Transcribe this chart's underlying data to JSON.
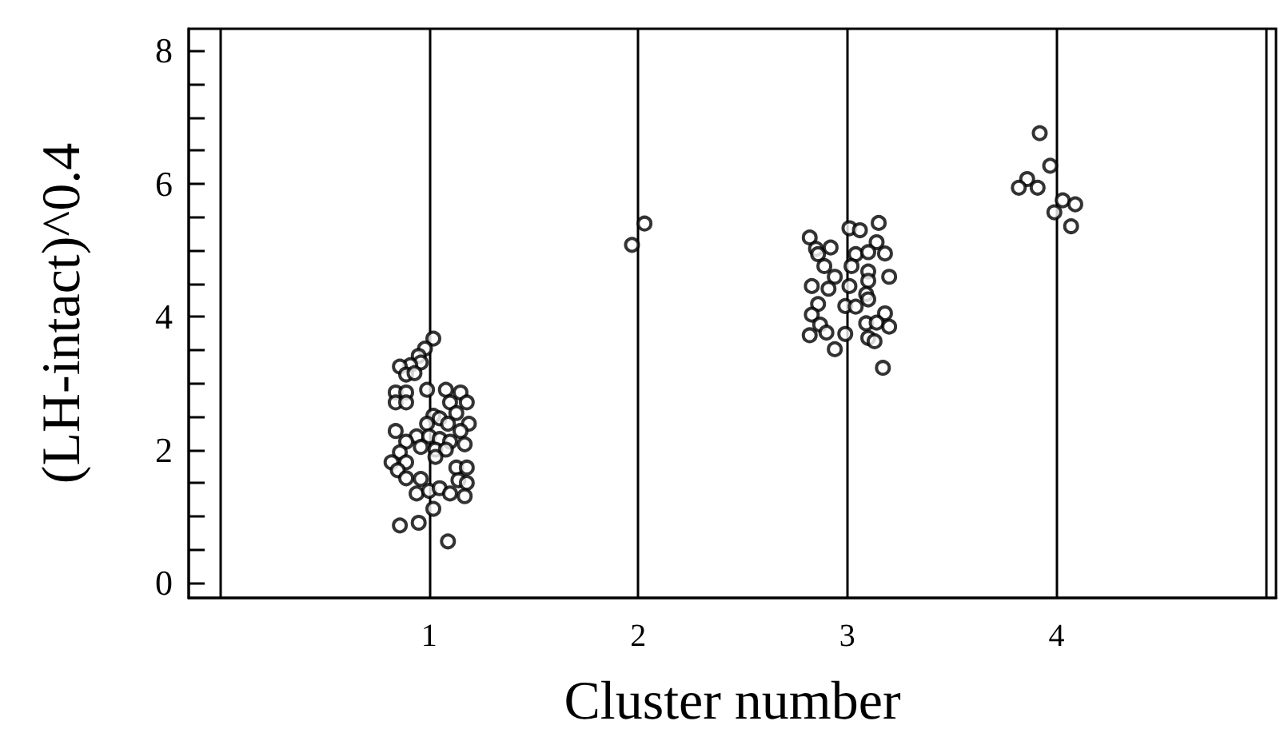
{
  "chart_data": {
    "type": "scatter",
    "xlabel": "Cluster number",
    "ylabel": "(LH-intact)^0.4",
    "xlim": [
      -0.15,
      5.05
    ],
    "xticks": [
      {
        "value": 0,
        "label": null
      },
      1,
      2,
      3,
      4,
      {
        "value": 5,
        "label": null
      }
    ],
    "ylim": [
      -0.23,
      8.33
    ],
    "yticks": [
      0,
      {
        "value": 0.5,
        "label": null
      },
      {
        "value": 1,
        "label": null
      },
      {
        "value": 1.5,
        "label": null
      },
      2,
      {
        "value": 2.5,
        "label": null
      },
      {
        "value": 3,
        "label": null
      },
      {
        "value": 3.5,
        "label": null
      },
      4,
      {
        "value": 4.5,
        "label": null
      },
      {
        "value": 5,
        "label": null
      },
      {
        "value": 5.5,
        "label": null
      },
      6,
      {
        "value": 6.5,
        "label": null
      },
      {
        "value": 7,
        "label": null
      },
      {
        "value": 7.5,
        "label": null
      },
      8
    ],
    "grid": "x",
    "marker": "circle",
    "series": [
      {
        "color": "#000000",
        "x": [
          1.02,
          0.98,
          0.95,
          0.96,
          0.91,
          0.86,
          0.89,
          0.93,
          0.84,
          0.89,
          0.84,
          0.89,
          0.99,
          1.08,
          1.15,
          1.1,
          1.18,
          1.13,
          1.02,
          1.05,
          0.99,
          1.09,
          1.19,
          1.15,
          0.84,
          0.94,
          1.0,
          1.05,
          0.89,
          1.1,
          1.17,
          0.96,
          1.03,
          0.86,
          1.08,
          0.82,
          0.89,
          1.03,
          1.13,
          1.18,
          0.85,
          0.89,
          0.96,
          1.14,
          1.18,
          0.94,
          1.0,
          1.05,
          1.1,
          1.17,
          1.02,
          0.86,
          0.95,
          1.09,
          2.03,
          1.97,
          3.15,
          3.01,
          3.06,
          2.82,
          3.14,
          2.85,
          2.92,
          2.86,
          3.04,
          3.1,
          3.18,
          2.89,
          3.02,
          3.1,
          3.2,
          2.94,
          2.83,
          2.91,
          3.01,
          3.1,
          3.09,
          3.1,
          2.86,
          2.99,
          3.04,
          2.83,
          3.18,
          2.87,
          3.09,
          3.14,
          3.2,
          2.82,
          2.9,
          2.99,
          3.1,
          3.13,
          2.94,
          3.17,
          3.92,
          3.97,
          3.86,
          3.82,
          3.91,
          4.03,
          4.09,
          3.99,
          4.07
        ],
        "values": [
          3.67,
          3.52,
          3.41,
          3.31,
          3.27,
          3.25,
          3.13,
          3.15,
          2.86,
          2.86,
          2.71,
          2.71,
          2.9,
          2.9,
          2.86,
          2.71,
          2.71,
          2.55,
          2.51,
          2.47,
          2.39,
          2.39,
          2.39,
          2.28,
          2.28,
          2.2,
          2.2,
          2.16,
          2.12,
          2.12,
          2.08,
          2.04,
          2.0,
          1.96,
          2.0,
          1.81,
          1.81,
          1.89,
          1.73,
          1.73,
          1.69,
          1.57,
          1.56,
          1.54,
          1.5,
          1.34,
          1.38,
          1.42,
          1.34,
          1.3,
          1.11,
          0.86,
          0.9,
          0.62,
          5.4,
          5.08,
          5.41,
          5.33,
          5.3,
          5.19,
          5.12,
          5.02,
          5.04,
          4.94,
          4.94,
          4.97,
          4.95,
          4.76,
          4.76,
          4.68,
          4.6,
          4.6,
          4.46,
          4.42,
          4.46,
          4.54,
          4.34,
          4.26,
          4.19,
          4.16,
          4.15,
          4.03,
          4.05,
          3.88,
          3.9,
          3.91,
          3.85,
          3.72,
          3.76,
          3.74,
          3.68,
          3.63,
          3.51,
          3.23,
          6.76,
          6.27,
          6.07,
          5.94,
          5.94,
          5.75,
          5.69,
          5.57,
          5.36
        ]
      }
    ]
  }
}
